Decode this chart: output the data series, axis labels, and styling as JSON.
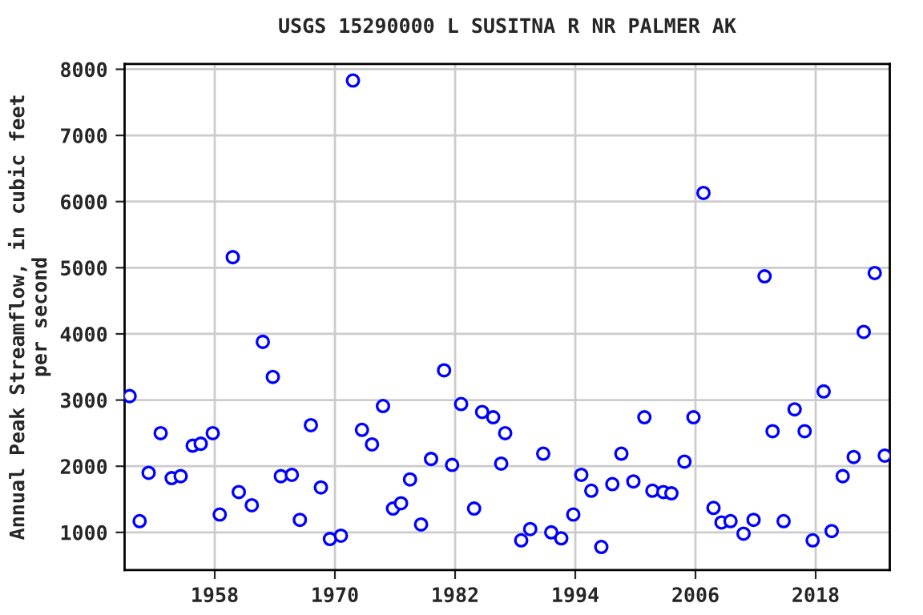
{
  "chart_data": {
    "type": "scatter",
    "title": "USGS 15290000 L SUSITNA R NR PALMER AK",
    "ylabel": "Annual Peak Streamflow, in cubic feet\nper second",
    "x": [
      1949.5,
      1950.5,
      1951.4,
      1952.6,
      1953.7,
      1954.6,
      1955.8,
      1956.6,
      1957.8,
      1958.5,
      1959.8,
      1960.4,
      1961.7,
      1962.8,
      1963.8,
      1964.6,
      1965.7,
      1966.5,
      1967.6,
      1968.6,
      1969.5,
      1970.6,
      1971.8,
      1972.7,
      1973.7,
      1974.8,
      1975.8,
      1976.6,
      1977.5,
      1978.6,
      1979.6,
      1980.9,
      1981.7,
      1982.6,
      1983.9,
      1984.7,
      1985.8,
      1986.6,
      1987.0,
      1988.6,
      1989.5,
      1990.8,
      1991.6,
      1992.6,
      1993.8,
      1994.6,
      1995.6,
      1996.6,
      1997.7,
      1998.6,
      1999.8,
      2000.9,
      2001.7,
      2002.8,
      2003.6,
      2004.9,
      2005.8,
      2006.8,
      2007.8,
      2008.6,
      2009.5,
      2010.8,
      2011.8,
      2012.9,
      2013.7,
      2014.8,
      2015.9,
      2016.9,
      2017.7,
      2018.8,
      2019.6,
      2020.7,
      2021.8,
      2022.8,
      2023.9,
      2024.9
    ],
    "series": [
      {
        "color": "#0000ff",
        "values": [
          3060,
          1170,
          1900,
          2500,
          1820,
          1850,
          2310,
          2340,
          2500,
          1270,
          5160,
          1610,
          1410,
          3880,
          3350,
          1850,
          1870,
          1190,
          2620,
          1680,
          900,
          950,
          7830,
          2550,
          2330,
          2910,
          1360,
          1440,
          1800,
          1120,
          2110,
          3450,
          2020,
          2940,
          1360,
          2820,
          2740,
          2040,
          2500,
          880,
          1050,
          2190,
          1000,
          910,
          1270,
          1870,
          1630,
          780,
          1730,
          2190,
          1770,
          2740,
          1630,
          1610,
          1590,
          2070,
          2740,
          6130,
          1370,
          1150,
          1170,
          980,
          1190,
          4870,
          2530,
          1170,
          2860,
          2530,
          880,
          3130,
          1020,
          1850,
          2140,
          4030,
          4920,
          2160
        ]
      }
    ],
    "xlim": [
      1949.0,
      2025.4
    ],
    "ylim": [
      430,
      8080
    ],
    "xticks": [
      1958,
      1970,
      1982,
      1994,
      2006,
      2018
    ],
    "yticks": [
      1000,
      2000,
      3000,
      4000,
      5000,
      6000,
      7000,
      8000
    ],
    "grid": true,
    "marker": "circle"
  }
}
